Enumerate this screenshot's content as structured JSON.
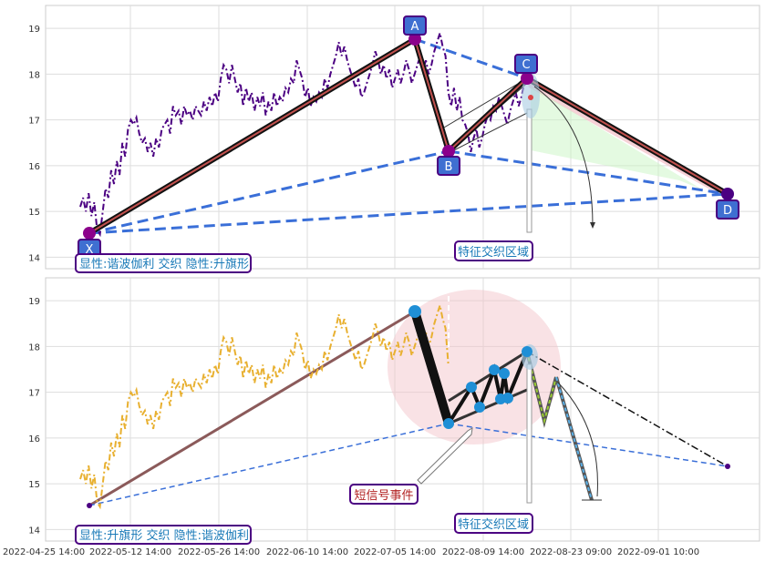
{
  "chart_data": [
    {
      "type": "line",
      "panel": "top",
      "y_ticks": [
        "14",
        "15",
        "16",
        "17",
        "18",
        "19"
      ],
      "ylim": [
        13.75,
        19.5
      ],
      "grid": true,
      "price_series": {
        "color": "#4b0082",
        "style": "dash-dot",
        "values": [
          15.1,
          15.3,
          15.0,
          15.4,
          14.9,
          15.2,
          14.6,
          14.5,
          15.0,
          15.5,
          15.3,
          15.9,
          15.6,
          16.1,
          15.8,
          16.5,
          16.2,
          16.8,
          17.0,
          16.9,
          17.05,
          16.7,
          16.5,
          16.6,
          16.3,
          16.5,
          16.2,
          16.6,
          16.4,
          16.8,
          16.9,
          17.0,
          16.7,
          17.3,
          17.1,
          17.2,
          16.9,
          17.3,
          17.1,
          17.2,
          17.0,
          17.3,
          17.2,
          17.1,
          17.4,
          17.2,
          17.5,
          17.3,
          17.6,
          17.4,
          17.9,
          18.2,
          18.1,
          17.8,
          18.2,
          17.9,
          17.6,
          17.8,
          17.3,
          17.7,
          17.4,
          17.6,
          17.2,
          17.5,
          17.3,
          17.6,
          17.1,
          17.4,
          17.2,
          17.6,
          17.3,
          17.5,
          17.4,
          17.7,
          17.6,
          17.9,
          17.8,
          18.3,
          18.1,
          17.9,
          17.5,
          17.7,
          17.3,
          17.5,
          17.4,
          17.6,
          17.5,
          17.9,
          17.7,
          18.0,
          18.2,
          18.4,
          18.7,
          18.4,
          18.6,
          18.3,
          18.1,
          17.9,
          17.7,
          17.9,
          17.5,
          17.6,
          17.8,
          18.0,
          18.2,
          18.5,
          18.3,
          18.0,
          18.2,
          17.9,
          18.1,
          17.7,
          17.9,
          18.1,
          17.8,
          18.0,
          18.3,
          18.1,
          17.8,
          18.0,
          18.2,
          18.4,
          18.1,
          18.3,
          18.0,
          18.2,
          18.5,
          18.7,
          18.9,
          18.6,
          18.4,
          17.6,
          17.3,
          17.7,
          17.2,
          17.5,
          17.0,
          16.9,
          16.7,
          16.3,
          16.6,
          16.8,
          16.4,
          16.6,
          16.9,
          17.1,
          17.0,
          17.3,
          17.2,
          17.5,
          17.3,
          17.1,
          16.9,
          17.2,
          17.4,
          17.6,
          17.3,
          17.5,
          17.8,
          17.9
        ]
      },
      "pattern_points": [
        {
          "label": "X",
          "x": "2022-04-25",
          "y": 14.5
        },
        {
          "label": "A",
          "x": "2022-07-05",
          "y": 18.75
        },
        {
          "label": "B",
          "x": "2022-07-28",
          "y": 16.3
        },
        {
          "label": "C",
          "x": "2022-08-15",
          "y": 17.9
        },
        {
          "label": "D",
          "x": "2022-09-10",
          "y": 15.35
        }
      ],
      "legend_text": "显性:谐波伽利 交织 隐性:升旗形",
      "annotation": "特征交织区域"
    },
    {
      "type": "line",
      "panel": "bottom",
      "y_ticks": [
        "14",
        "15",
        "16",
        "17",
        "18",
        "19"
      ],
      "ylim": [
        13.75,
        19.5
      ],
      "grid": true,
      "price_series": {
        "color": "#e8b030",
        "style": "dash-dot",
        "values_same_as_top": true
      },
      "flag_points": [
        {
          "x": "2022-07-05",
          "y": 18.75
        },
        {
          "x": "2022-07-28",
          "y": 16.3
        },
        {
          "x": "2022-07-31",
          "y": 17.1
        },
        {
          "x": "2022-08-01",
          "y": 16.65
        },
        {
          "x": "2022-08-04",
          "y": 17.45
        },
        {
          "x": "2022-08-05",
          "y": 16.8
        },
        {
          "x": "2022-08-06",
          "y": 17.35
        },
        {
          "x": "2022-08-07",
          "y": 16.85
        },
        {
          "x": "2022-08-15",
          "y": 17.9
        }
      ],
      "forecast": [
        {
          "x": "2022-08-15",
          "y": 17.9
        },
        {
          "x": "2022-08-18",
          "y": 16.9
        },
        {
          "x": "2022-08-20",
          "y": 17.3
        },
        {
          "x": "2022-08-25",
          "y": 14.65
        }
      ],
      "legend_text": "显性:升旗形 交织 隐性:谐波伽利",
      "annotation": "特征交织区域",
      "event_label": "短信号事件"
    }
  ],
  "x_ticks": [
    "2022-04-25 14:00",
    "2022-05-12 14:00",
    "2022-05-26 14:00",
    "2022-06-10 14:00",
    "2022-07-05 14:00",
    "2022-08-09 14:00",
    "2022-08-23 09:00",
    "2022-09-01 10:00"
  ],
  "colors": {
    "purple_line": "#4b0082",
    "gold_line": "#e8b030",
    "blue_dash": "#3a6fd8",
    "label_box": "#3f6fd1",
    "label_border": "#4b0082",
    "legend_text": "#1a7ab8",
    "event_text": "#b22222",
    "marker_blue": "#1f8fd6",
    "pink_zone": "#f4c6cc",
    "green_zone": "#c9f5c4"
  }
}
